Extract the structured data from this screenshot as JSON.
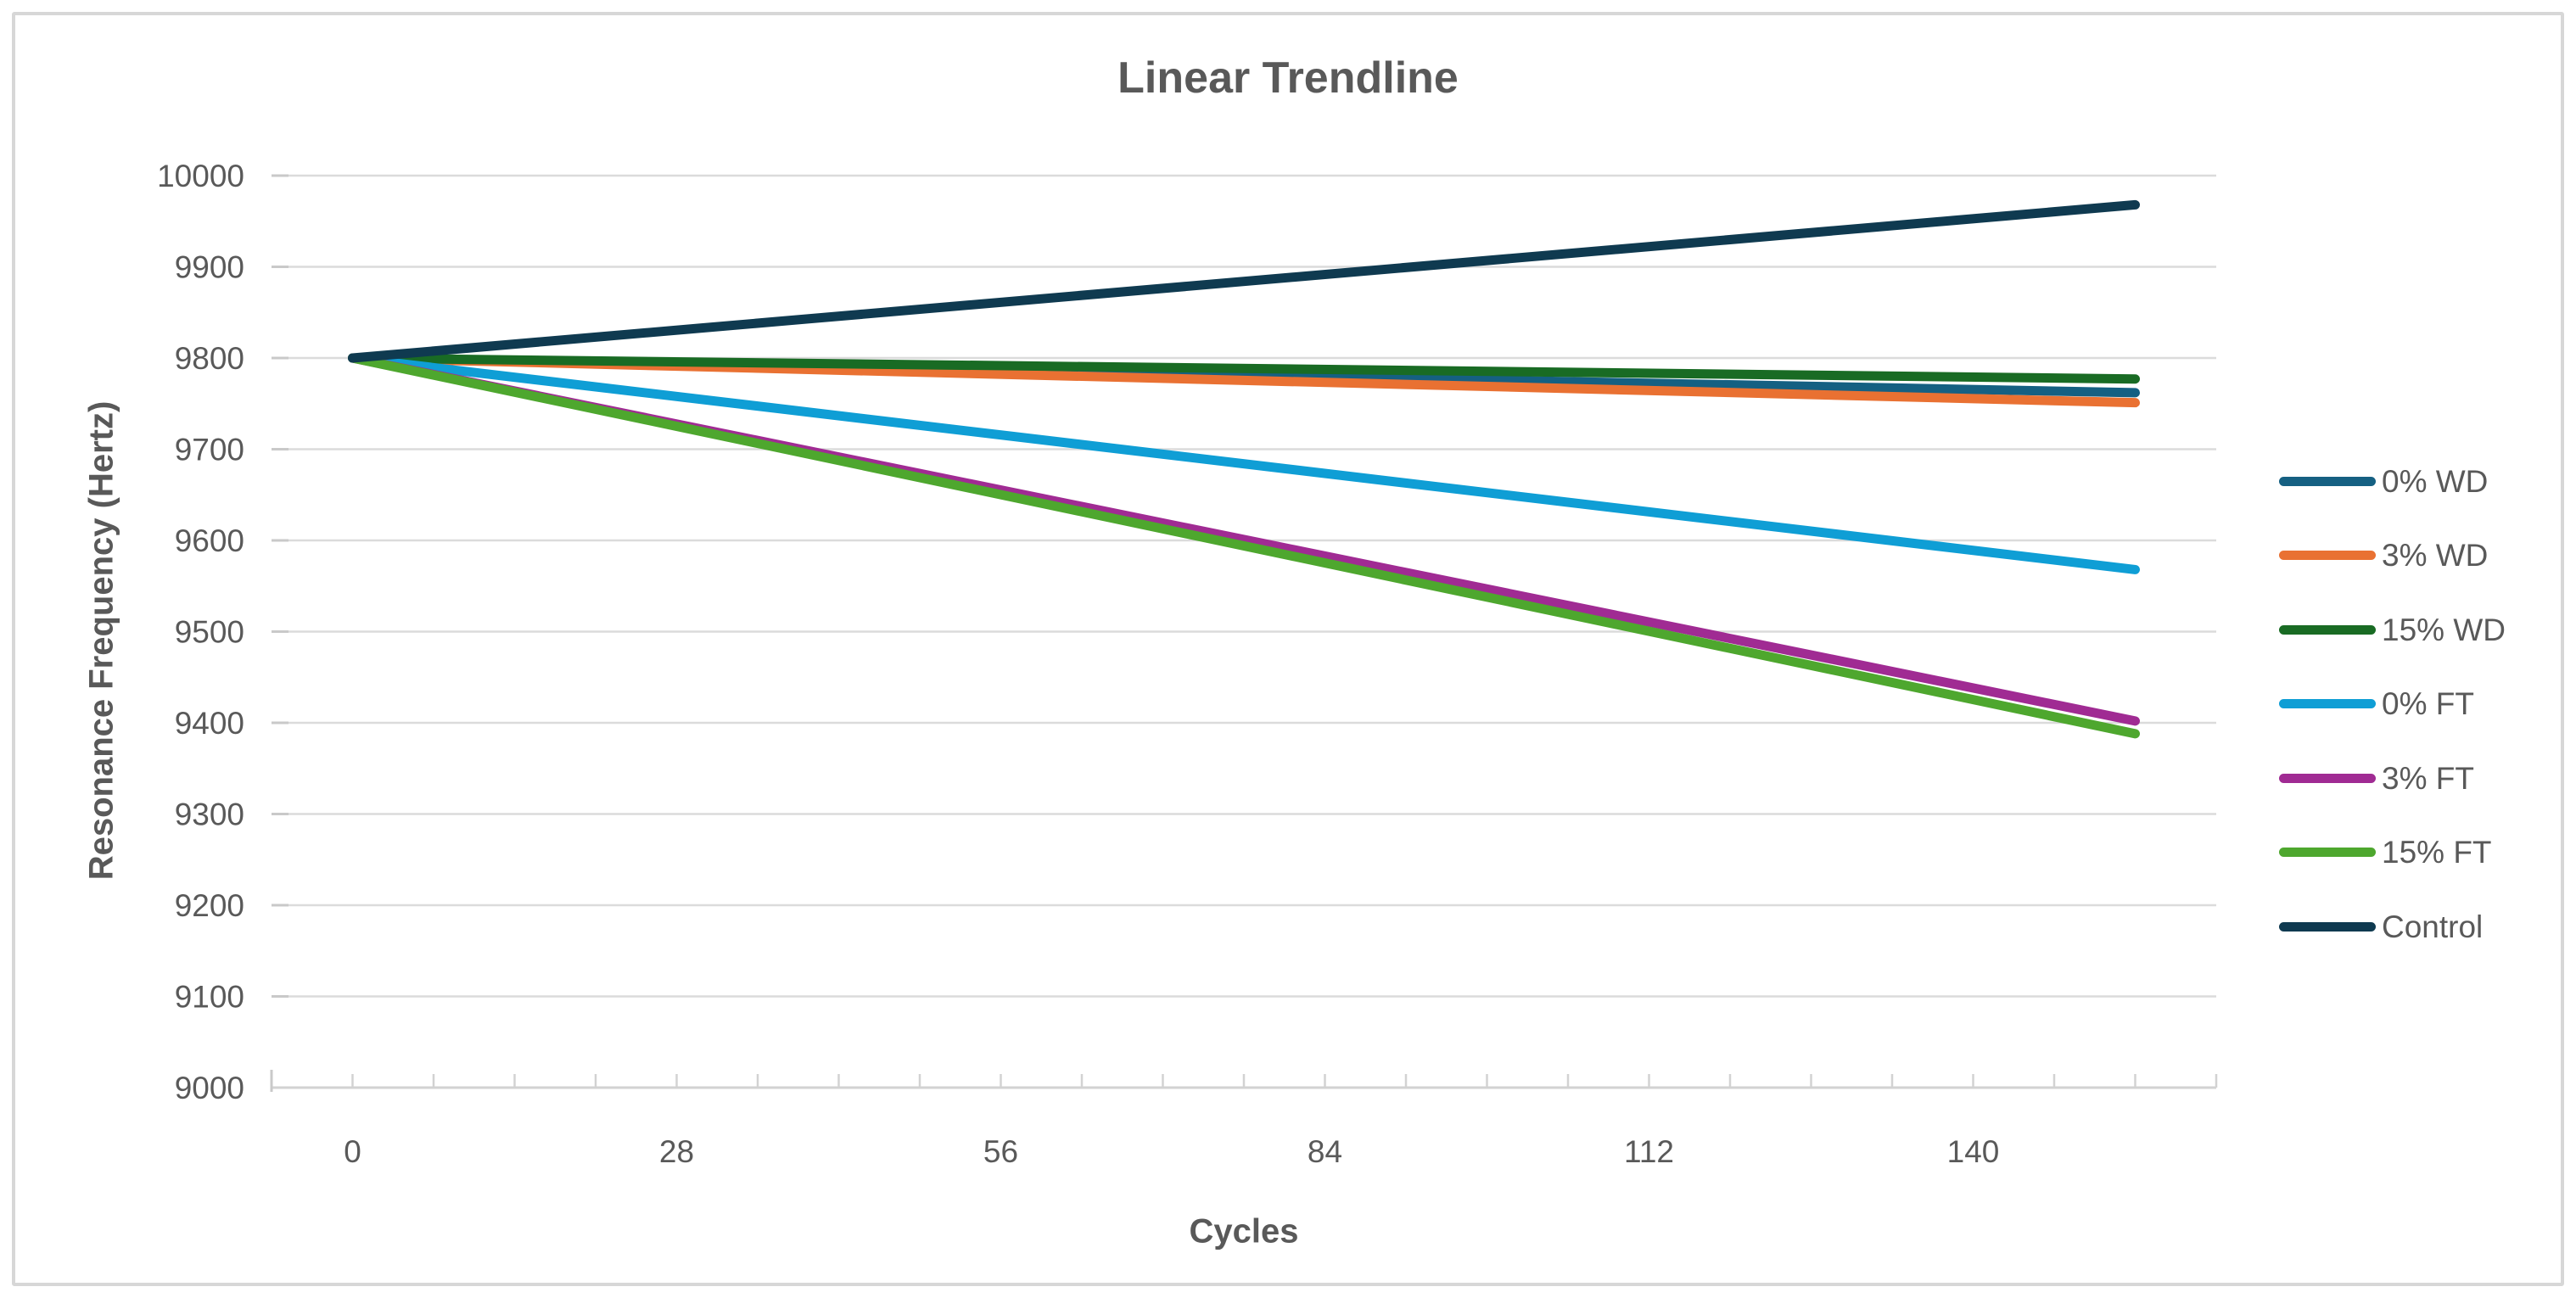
{
  "chart": {
    "background": "#FFFFFF",
    "border_color": "#D7D7D7",
    "text_color": "#595959",
    "gridline_color": "#DBDBDB",
    "axis_line_color": "#D2D2D2",
    "tick_color": "#C9C9C9"
  },
  "chart_data": {
    "type": "line",
    "title": "Linear Trendline",
    "xlabel": "Cycles",
    "ylabel": "Resonance Frequency (Hertz)",
    "grid": true,
    "legend_position": "right",
    "xlim": [
      -7,
      161
    ],
    "x_ticks": [
      0,
      28,
      56,
      84,
      112,
      140
    ],
    "x_minor_tick_step": 7,
    "ylim": [
      9000,
      10000
    ],
    "y_ticks": [
      9000,
      9100,
      9200,
      9300,
      9400,
      9500,
      9600,
      9700,
      9800,
      9900,
      10000
    ],
    "x": [
      0,
      154
    ],
    "series": [
      {
        "name": "0% WD",
        "color": "#156082",
        "values": [
          9800,
          9762
        ]
      },
      {
        "name": "3% WD",
        "color": "#E97132",
        "values": [
          9800,
          9751
        ]
      },
      {
        "name": "15% WD",
        "color": "#196B24",
        "values": [
          9800,
          9777
        ]
      },
      {
        "name": "0% FT",
        "color": "#0F9ED5",
        "values": [
          9800,
          9568
        ]
      },
      {
        "name": "3% FT",
        "color": "#A02B93",
        "values": [
          9800,
          9402
        ]
      },
      {
        "name": "15% FT",
        "color": "#4EA72E",
        "values": [
          9800,
          9388
        ]
      },
      {
        "name": "Control",
        "color": "#0F3A50",
        "values": [
          9800,
          9968
        ]
      }
    ]
  }
}
